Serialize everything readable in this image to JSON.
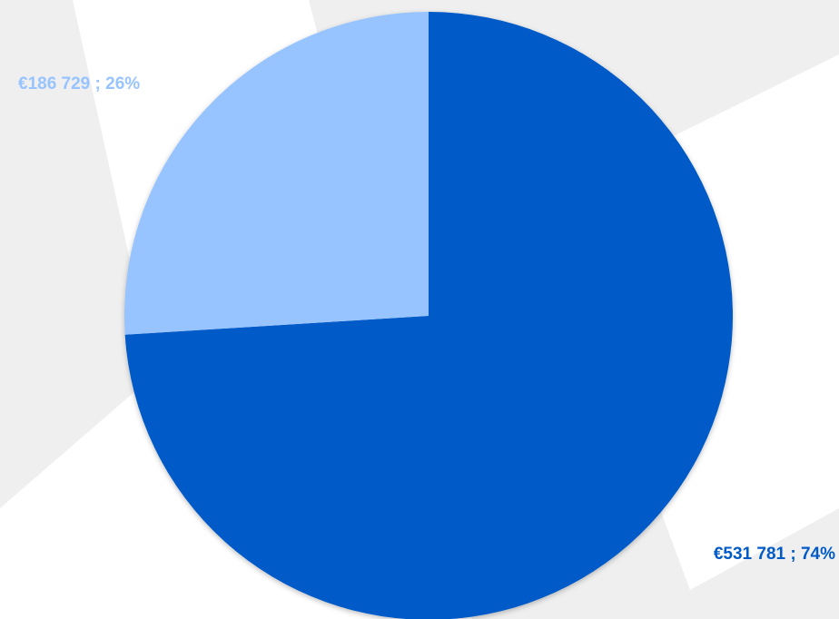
{
  "chart_data": {
    "type": "pie",
    "title": "",
    "slices": [
      {
        "value": 531781,
        "percent": 74,
        "label": "€531 781 ; 74%",
        "color": "#005ac8"
      },
      {
        "value": 186729,
        "percent": 26,
        "label": "€186 729 ; 26%",
        "color": "#97c4ff"
      }
    ],
    "legend": "none",
    "background_color": "#efefef"
  }
}
